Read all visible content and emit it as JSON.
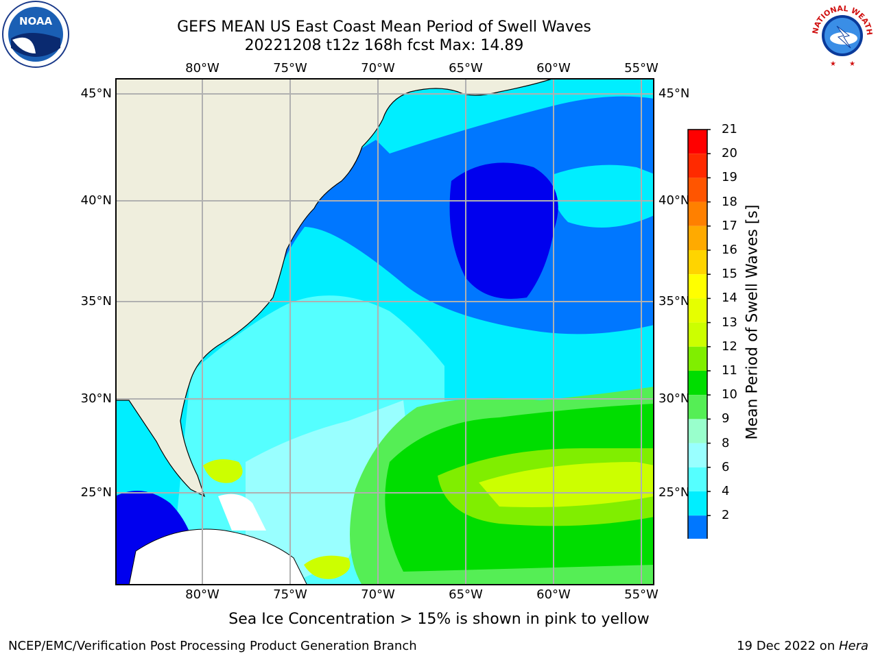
{
  "header": {
    "title_line1": "GEFS MEAN US East Coast Mean Period of Swell Waves",
    "title_line2": "20221208 t12z 168h fcst   Max: 14.89"
  },
  "logos": {
    "left": {
      "icon": "noaa-logo-icon",
      "text": "NOAA"
    },
    "right": {
      "icon": "nws-logo-icon",
      "text": "NATIONAL WEATHER SERVICE"
    }
  },
  "map": {
    "lon_labels": [
      "80°W",
      "75°W",
      "70°W",
      "65°W",
      "60°W",
      "55°W"
    ],
    "lat_labels": [
      "45°N",
      "40°N",
      "35°N",
      "30°N",
      "25°N"
    ],
    "land_color": "#efeedd",
    "grid_color": "#b0b0b0"
  },
  "colorbar": {
    "label": "Mean Period of Swell Waves [s]",
    "ticks": [
      "21",
      "20",
      "19",
      "18",
      "17",
      "16",
      "15",
      "14",
      "13",
      "12",
      "11",
      "10",
      "9",
      "8",
      "6",
      "4",
      "2"
    ],
    "colors": [
      "#ff0000",
      "#ff2a00",
      "#ff5500",
      "#ff8000",
      "#ffaa00",
      "#ffd400",
      "#ffff00",
      "#e6ff00",
      "#ccff00",
      "#80ee00",
      "#00dd00",
      "#55ee55",
      "#99ffcc",
      "#99ffff",
      "#55ffff",
      "#00eeff",
      "#0077ff"
    ],
    "under_color": "#0000ee"
  },
  "footer": {
    "note": "Sea Ice Concentration > 15% is shown in pink to yellow",
    "left": "NCEP/EMC/Verification Post Processing Product Generation Branch",
    "right_prefix": "19 Dec 2022 on ",
    "right_host": "Hera"
  }
}
